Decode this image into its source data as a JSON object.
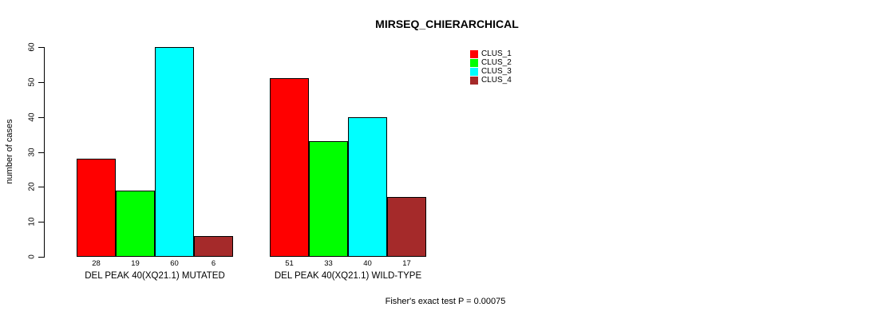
{
  "chart_data": {
    "type": "bar",
    "title": "MIRSEQ_CHIERARCHICAL",
    "ylabel": "number of cases",
    "xlabel": "",
    "ylim": [
      0,
      60
    ],
    "yticks": [
      0,
      10,
      20,
      30,
      40,
      50,
      60
    ],
    "grid": false,
    "legend_position": "top-right",
    "bar_value_labels": true,
    "series": [
      {
        "name": "CLUS_1",
        "color": "#FF0000"
      },
      {
        "name": "CLUS_2",
        "color": "#00FF00"
      },
      {
        "name": "CLUS_3",
        "color": "#00FFFF"
      },
      {
        "name": "CLUS_4",
        "color": "#A52A2A"
      }
    ],
    "categories": [
      "DEL PEAK 40(XQ21.1) MUTATED",
      "DEL PEAK 40(XQ21.1) WILD-TYPE"
    ],
    "groups": [
      {
        "label": "DEL PEAK 40(XQ21.1) MUTATED",
        "values": [
          28,
          19,
          60,
          6
        ]
      },
      {
        "label": "DEL PEAK 40(XQ21.1) WILD-TYPE",
        "values": [
          51,
          33,
          40,
          17
        ]
      }
    ],
    "note": "Fisher's exact test P = 0.00075"
  }
}
